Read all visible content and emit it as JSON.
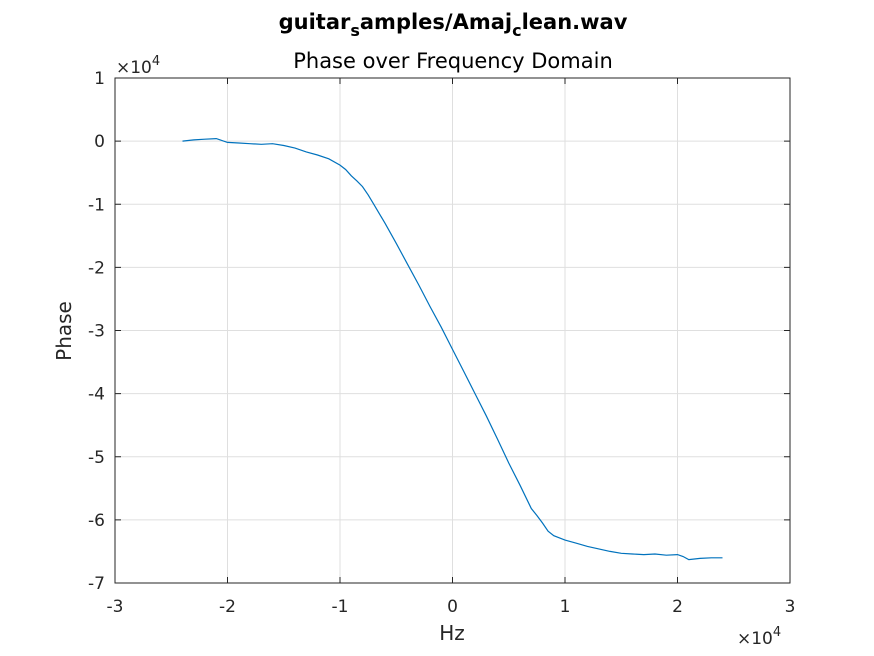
{
  "chart_data": {
    "type": "line",
    "title_parts": [
      "guitar",
      "s",
      "amples/Amaj",
      "c",
      "lean.wav"
    ],
    "subtitle": "Phase over Frequency Domain",
    "xlabel": "Hz",
    "ylabel": "Phase",
    "x_multiplier": "×10",
    "x_multiplier_exp": "4",
    "y_multiplier": "×10",
    "y_multiplier_exp": "4",
    "xlim": [
      -3,
      3
    ],
    "ylim": [
      -7,
      1
    ],
    "x_ticks": [
      "-3",
      "-2",
      "-1",
      "0",
      "1",
      "2",
      "3"
    ],
    "y_ticks": [
      "1",
      "0",
      "-1",
      "-2",
      "-3",
      "-4",
      "-5",
      "-6",
      "-7"
    ],
    "x_tick_values": [
      -3,
      -2,
      -1,
      0,
      1,
      2,
      3
    ],
    "y_tick_values": [
      1,
      0,
      -1,
      -2,
      -3,
      -4,
      -5,
      -6,
      -7
    ],
    "grid": true,
    "line_color": "#0072bd",
    "series": [
      {
        "x": [
          -2.4,
          -2.3,
          -2.2,
          -2.1,
          -2.0,
          -1.9,
          -1.8,
          -1.7,
          -1.6,
          -1.5,
          -1.4,
          -1.3,
          -1.2,
          -1.1,
          -1.0,
          -0.95,
          -0.9,
          -0.85,
          -0.8,
          -0.75,
          -0.7,
          -0.6,
          -0.5,
          -0.4,
          -0.3,
          -0.2,
          -0.1,
          0.0,
          0.1,
          0.2,
          0.3,
          0.4,
          0.5,
          0.6,
          0.7,
          0.75,
          0.8,
          0.85,
          0.9,
          1.0,
          1.1,
          1.2,
          1.3,
          1.4,
          1.5,
          1.6,
          1.7,
          1.8,
          1.9,
          2.0,
          2.05,
          2.1,
          2.15,
          2.2,
          2.3,
          2.4
        ],
        "y": [
          0.0,
          0.02,
          0.03,
          0.04,
          -0.02,
          -0.03,
          -0.04,
          -0.05,
          -0.04,
          -0.07,
          -0.11,
          -0.17,
          -0.22,
          -0.28,
          -0.38,
          -0.45,
          -0.55,
          -0.63,
          -0.72,
          -0.85,
          -1.0,
          -1.3,
          -1.62,
          -1.95,
          -2.28,
          -2.62,
          -2.95,
          -3.3,
          -3.65,
          -4.0,
          -4.35,
          -4.72,
          -5.1,
          -5.45,
          -5.82,
          -5.93,
          -6.05,
          -6.18,
          -6.25,
          -6.32,
          -6.37,
          -6.42,
          -6.46,
          -6.5,
          -6.53,
          -6.54,
          -6.55,
          -6.54,
          -6.56,
          -6.55,
          -6.58,
          -6.63,
          -6.62,
          -6.61,
          -6.6,
          -6.6
        ]
      }
    ]
  }
}
